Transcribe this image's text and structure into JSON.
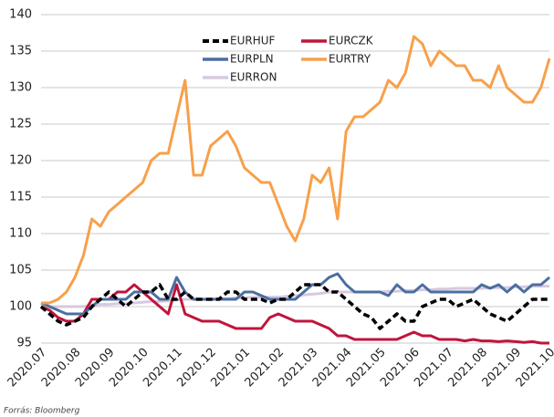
{
  "chart_data": {
    "type": "line",
    "source": "Forrás: Bloomberg",
    "categories": [
      "2020.07",
      null,
      null,
      null,
      "2020.08",
      null,
      null,
      null,
      "2020.09",
      null,
      null,
      null,
      "2020.10",
      null,
      null,
      null,
      "2020.11",
      null,
      null,
      null,
      "2020.12",
      null,
      null,
      null,
      "2021.01",
      null,
      null,
      null,
      "2021.02",
      null,
      null,
      null,
      "2021.03",
      null,
      null,
      null,
      "2021.04",
      null,
      null,
      null,
      "2021.05",
      null,
      null,
      null,
      "2021.06",
      null,
      null,
      null,
      "2021.07",
      null,
      null,
      null,
      "2021.08",
      null,
      null,
      null,
      "2021.09",
      null,
      null,
      null,
      "2021.10"
    ],
    "ylim": [
      95,
      140
    ],
    "yticks": [
      95,
      100,
      105,
      110,
      115,
      120,
      125,
      130,
      135,
      140
    ],
    "grid": true,
    "series": [
      {
        "name": "EURHUF",
        "color": "#000000",
        "dashed": true,
        "values": [
          100,
          99,
          98,
          97.5,
          98,
          98.5,
          100,
          101,
          102,
          101,
          100,
          101,
          102,
          102,
          103,
          101,
          101,
          102,
          101,
          101,
          101,
          101,
          102,
          102,
          101,
          101,
          101,
          100.5,
          101,
          101,
          102,
          103,
          103,
          103,
          102,
          102,
          101,
          100,
          99,
          98.5,
          97,
          98,
          99,
          98,
          98,
          100,
          100.5,
          101,
          101,
          100,
          100.5,
          101,
          100,
          99,
          98.5,
          98,
          99,
          100,
          101,
          101,
          101
        ]
      },
      {
        "name": "EURCZK",
        "color": "#c0143c",
        "values": [
          100,
          99.5,
          98.5,
          98,
          98,
          99,
          101,
          101,
          101,
          102,
          102,
          103,
          102,
          101,
          100,
          99,
          103,
          99,
          98.5,
          98,
          98,
          98,
          97.5,
          97,
          97,
          97,
          97,
          98.5,
          99,
          98.5,
          98,
          98,
          98,
          97.5,
          97,
          96,
          96,
          95.5,
          95.5,
          95.5,
          95.5,
          95.5,
          95.5,
          96,
          96.5,
          96,
          96,
          95.5,
          95.5,
          95.5,
          95.3,
          95.5,
          95.3,
          95.3,
          95.2,
          95.3,
          95.2,
          95.1,
          95.2,
          95,
          95
        ]
      },
      {
        "name": "EURPLN",
        "color": "#4a6fa0",
        "values": [
          100.5,
          100,
          99.5,
          99,
          99,
          99,
          100,
          101,
          101,
          101,
          101,
          102,
          102,
          102,
          101,
          101,
          104,
          102,
          101,
          101,
          101,
          101,
          101,
          101,
          102,
          102,
          101.5,
          101,
          101,
          101,
          101,
          102,
          103,
          103,
          104,
          104.5,
          103,
          102,
          102,
          102,
          102,
          101.5,
          103,
          102,
          102,
          103,
          102,
          102,
          102,
          102,
          102,
          102,
          103,
          102.5,
          103,
          102,
          103,
          102,
          103,
          103,
          104
        ]
      },
      {
        "name": "EURTRY",
        "color": "#f7a04a",
        "values": [
          100.5,
          100.5,
          101,
          102,
          104,
          107,
          112,
          111,
          113,
          114,
          115,
          116,
          117,
          120,
          121,
          121,
          126,
          131,
          118,
          118,
          122,
          123,
          124,
          122,
          119,
          118,
          117,
          117,
          114,
          111,
          109,
          112,
          118,
          117,
          119,
          112,
          124,
          126,
          126,
          127,
          128,
          131,
          130,
          132,
          137,
          136,
          133,
          135,
          134,
          133,
          133,
          131,
          131,
          130,
          133,
          130,
          129,
          128,
          128,
          130,
          134
        ]
      },
      {
        "name": "EURRON",
        "color": "#d8c8e0",
        "values": [
          100,
          100,
          100,
          100,
          100,
          100,
          100.2,
          100.3,
          100.3,
          100.4,
          100.4,
          100.5,
          100.6,
          100.7,
          100.7,
          100.8,
          100.9,
          101,
          101,
          101,
          101,
          101.1,
          101.1,
          101.2,
          101.2,
          101.3,
          101.3,
          101.3,
          101.3,
          101.4,
          101.5,
          101.6,
          101.7,
          101.8,
          102,
          102,
          102,
          102,
          102,
          102,
          102,
          102.1,
          102.1,
          102.2,
          102.2,
          102.3,
          102.3,
          102.4,
          102.4,
          102.5,
          102.5,
          102.5,
          102.5,
          102.6,
          102.6,
          102.6,
          102.7,
          102.7,
          102.8,
          102.8,
          102.8
        ]
      }
    ]
  }
}
